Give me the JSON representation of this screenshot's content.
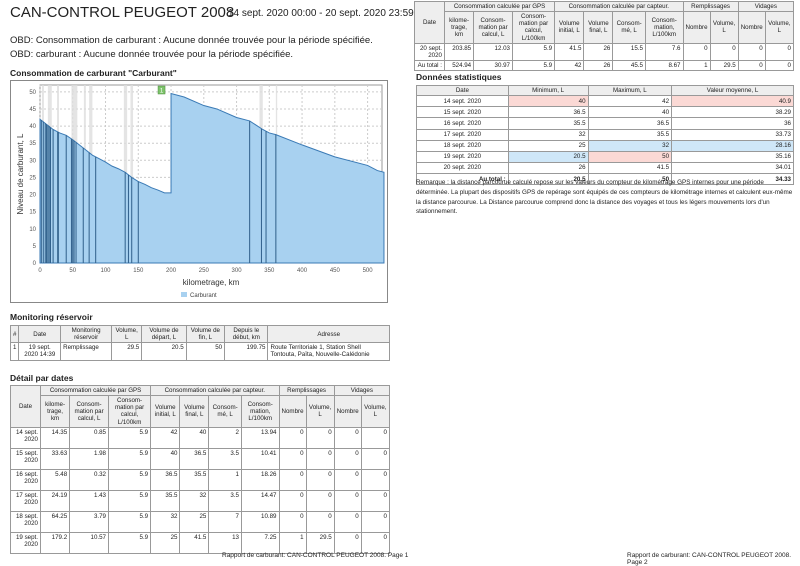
{
  "header": {
    "title": "CAN-CONTROL PEUGEOT 2008",
    "period": "14 sept. 2020 00:00 - 20 sept. 2020 23:59"
  },
  "messages": [
    "OBD: Consommation de carburant : Aucune donnée trouvée pour la période spécifiée.",
    "OBD: carburant : Aucune donnée trouvée pour la période spécifiée."
  ],
  "chart_data": {
    "type": "area",
    "title": "Consommation de carburant \"Carburant\"",
    "xlabel": "kilometrage, km",
    "ylabel": "Niveau de carburant, L",
    "xlim": [
      0,
      522
    ],
    "ylim": [
      0,
      52
    ],
    "xticks": [
      0,
      50,
      100,
      150,
      200,
      250,
      300,
      350,
      400,
      450,
      500
    ],
    "yticks": [
      0,
      5,
      10,
      15,
      20,
      25,
      30,
      35,
      40,
      45,
      50
    ],
    "grid": true,
    "legend": "bottom",
    "color": "#a8d1f0",
    "line_color": "#3a7ab5",
    "series": [
      {
        "name": "Carburant",
        "x": [
          0,
          10,
          20,
          30,
          40,
          50,
          60,
          70,
          80,
          90,
          100,
          110,
          120,
          130,
          140,
          150,
          160,
          170,
          180,
          190,
          200,
          200,
          220,
          250,
          270,
          300,
          320,
          340,
          350,
          360,
          400,
          450,
          500,
          515,
          525
        ],
        "y": [
          42,
          40.5,
          39,
          38,
          37.3,
          36,
          34.5,
          33,
          31.5,
          30.5,
          29.5,
          28.3,
          27.5,
          26.5,
          25,
          23.8,
          23,
          22,
          21.3,
          20.5,
          20.5,
          49.5,
          48.5,
          46,
          45,
          42.5,
          41.5,
          39,
          38,
          37.5,
          34.5,
          31,
          28.5,
          27,
          26.5
        ]
      }
    ],
    "stops_km": [
      2,
      5,
      8,
      10,
      12,
      14,
      16,
      20,
      27,
      28,
      40,
      48,
      50,
      52,
      55,
      66,
      75,
      85,
      130,
      135,
      140,
      150,
      320,
      338,
      345,
      360
    ],
    "gray_bands_km": [
      [
        3,
        6
      ],
      [
        12,
        18
      ],
      [
        26,
        29
      ],
      [
        48,
        57
      ],
      [
        67,
        70
      ],
      [
        75,
        80
      ],
      [
        128,
        133
      ],
      [
        138,
        142
      ],
      [
        335,
        340
      ],
      [
        360,
        362
      ]
    ],
    "annotations": [
      {
        "x": 200,
        "label": "1"
      }
    ]
  },
  "monitoring": {
    "title": "Monitoring réservoir",
    "headers": [
      "#",
      "Date",
      "Monitoring réservoir",
      "Volume, L",
      "Volume de départ, L",
      "Volume de fin, L",
      "Depuis le début, km",
      "Adresse"
    ],
    "rows": [
      [
        "1",
        "19 sept. 2020 14:39",
        "Remplissage",
        "29.5",
        "20.5",
        "50",
        "199.75",
        "Route Territoriale 1, Station Shell Tontouta, Païta, Nouvelle-Calédonie"
      ]
    ]
  },
  "detail": {
    "title": "Détail par dates",
    "groups": [
      "Date",
      "Consommation calculée par GPS",
      "Consommation calculée par capteur.",
      "Remplissages",
      "Vidages"
    ],
    "headers": [
      "kilome-trage, km",
      "Consom-mation par calcul, L",
      "Consom-mation par calcul, L/100km",
      "Volume initial, L",
      "Volume final, L",
      "Consom-mé, L",
      "Consom-mation, L/100km",
      "Nombre",
      "Volume, L",
      "Nombre",
      "Volume, L"
    ],
    "rows": [
      [
        "14 sept. 2020",
        "14.35",
        "0.85",
        "5.9",
        "42",
        "40",
        "2",
        "13.94",
        "0",
        "0",
        "0",
        "0"
      ],
      [
        "15 sept. 2020",
        "33.63",
        "1.98",
        "5.9",
        "40",
        "36.5",
        "3.5",
        "10.41",
        "0",
        "0",
        "0",
        "0"
      ],
      [
        "16 sept. 2020",
        "5.48",
        "0.32",
        "5.9",
        "36.5",
        "35.5",
        "1",
        "18.26",
        "0",
        "0",
        "0",
        "0"
      ],
      [
        "17 sept. 2020",
        "24.19",
        "1.43",
        "5.9",
        "35.5",
        "32",
        "3.5",
        "14.47",
        "0",
        "0",
        "0",
        "0"
      ],
      [
        "18 sept. 2020",
        "64.25",
        "3.79",
        "5.9",
        "32",
        "25",
        "7",
        "10.89",
        "0",
        "0",
        "0",
        "0"
      ],
      [
        "19 sept. 2020",
        "179.2",
        "10.57",
        "5.9",
        "25",
        "41.5",
        "13",
        "7.25",
        "1",
        "29.5",
        "0",
        "0"
      ]
    ],
    "rows_page2": [
      [
        "20 sept. 2020",
        "203.85",
        "12.03",
        "5.9",
        "41.5",
        "26",
        "15.5",
        "7.6",
        "0",
        "0",
        "0",
        "0"
      ],
      [
        "Au total :",
        "524.94",
        "30.97",
        "5.9",
        "42",
        "26",
        "45.5",
        "8.67",
        "1",
        "29.5",
        "0",
        "0"
      ]
    ]
  },
  "stats": {
    "title": "Données statistiques",
    "headers": [
      "Date",
      "Minimum, L",
      "Maximum, L",
      "Valeur moyenne, L"
    ],
    "rows": [
      [
        "14 sept. 2020",
        "40",
        "42",
        "40.9"
      ],
      [
        "15 sept. 2020",
        "36.5",
        "40",
        "38.29"
      ],
      [
        "16 sept. 2020",
        "35.5",
        "36.5",
        "36"
      ],
      [
        "17 sept. 2020",
        "32",
        "35.5",
        "33.73"
      ],
      [
        "18 sept. 2020",
        "25",
        "32",
        "28.16"
      ],
      [
        "19 sept. 2020",
        "20.5",
        "50",
        "35.16"
      ],
      [
        "20 sept. 2020",
        "26",
        "41.5",
        "34.01"
      ],
      [
        "Au total :",
        "20.5",
        "50",
        "34.33"
      ]
    ],
    "highlights": {
      "0-1": "pink",
      "0-3": "pink",
      "4-2": "blue",
      "4-3": "blue",
      "5-1": "blue",
      "5-2": "pink"
    }
  },
  "remark": "Remarque : la distance parcourue calculé repose sur les valeurs du compteur de kilométrage GPS internes pour une période déterminée. La plupart des  dispositifs GPS de repérage sont équipés de ces compteurs de kilométrage internes et calculent eux-même la distance parcourue. La Distance parcourue comprend donc la distance des voyages et tous les légers mouvements lors d'un stationnement.",
  "footers": [
    "Rapport de carburant: CAN-CONTROL PEUGEOT 2008. Page 1",
    "Rapport de carburant: CAN-CONTROL PEUGEOT 2008. Page 2"
  ]
}
